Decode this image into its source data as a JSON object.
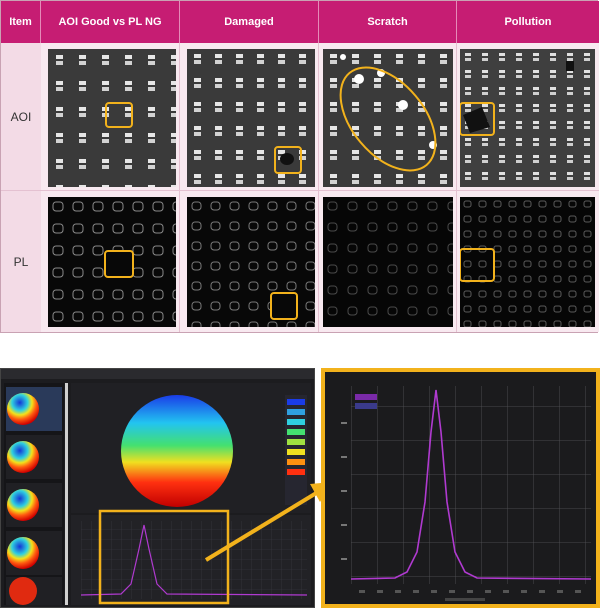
{
  "table": {
    "headers": [
      "Item",
      "AOI Good vs PL NG",
      "Damaged",
      "Scratch",
      "Pollution"
    ],
    "rows": [
      "AOI",
      "PL"
    ]
  },
  "colors": {
    "header_bg": "#c61d73",
    "highlight": "#f2b21c",
    "pink_cell": "#f8e9f0",
    "curve": "#b03ad0"
  },
  "icons": [
    "wafer-map-icon",
    "zoom-arrow-icon"
  ]
}
